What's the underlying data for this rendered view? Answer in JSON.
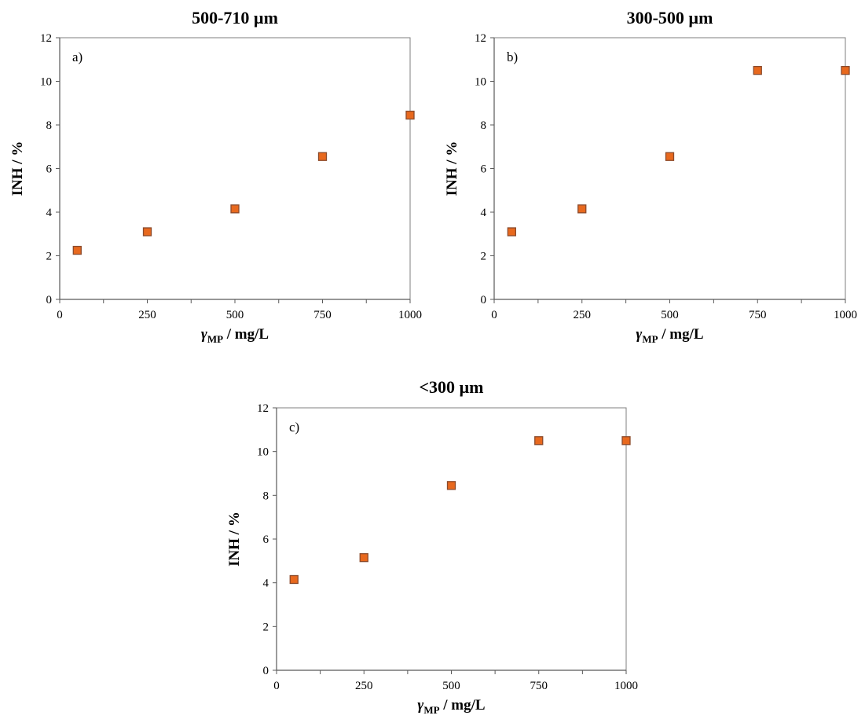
{
  "chart_data": [
    {
      "type": "scatter",
      "title": "500-710 µm",
      "panel_label": "a)",
      "xlabel_symbol": "γ",
      "xlabel_sub": "MP",
      "xlabel_unit": " / mg/L",
      "ylabel": "INH / %",
      "xlim": [
        0,
        1000
      ],
      "ylim": [
        0,
        12
      ],
      "x_major_ticks": [
        0,
        250,
        500,
        750,
        1000
      ],
      "x_tick_labels": [
        "0",
        "250",
        "500",
        "750",
        "1000"
      ],
      "y_major_ticks": [
        0,
        2,
        4,
        6,
        8,
        10,
        12
      ],
      "y_tick_labels": [
        "0",
        "2",
        "4",
        "6",
        "8",
        "10",
        "12"
      ],
      "grid": false,
      "marker": "square",
      "marker_fill": "#E8691E",
      "marker_edge": "#8B4A2B",
      "points": [
        {
          "x": 50,
          "y": 2.25
        },
        {
          "x": 250,
          "y": 3.1
        },
        {
          "x": 500,
          "y": 4.15
        },
        {
          "x": 750,
          "y": 6.55
        },
        {
          "x": 1000,
          "y": 8.45
        }
      ]
    },
    {
      "type": "scatter",
      "title": "300-500 µm",
      "panel_label": "b)",
      "xlabel_symbol": "γ",
      "xlabel_sub": "MP",
      "xlabel_unit": " / mg/L",
      "ylabel": "INH / %",
      "xlim": [
        0,
        1000
      ],
      "ylim": [
        0,
        12
      ],
      "x_major_ticks": [
        0,
        250,
        500,
        750,
        1000
      ],
      "x_tick_labels": [
        "0",
        "250",
        "500",
        "750",
        "1000"
      ],
      "y_major_ticks": [
        0,
        2,
        4,
        6,
        8,
        10,
        12
      ],
      "y_tick_labels": [
        "0",
        "2",
        "4",
        "6",
        "8",
        "10",
        "12"
      ],
      "grid": false,
      "marker": "square",
      "marker_fill": "#E8691E",
      "marker_edge": "#8B4A2B",
      "points": [
        {
          "x": 50,
          "y": 3.1
        },
        {
          "x": 250,
          "y": 4.15
        },
        {
          "x": 500,
          "y": 6.55
        },
        {
          "x": 750,
          "y": 10.5
        },
        {
          "x": 1000,
          "y": 10.5
        }
      ]
    },
    {
      "type": "scatter",
      "title": "<300 µm",
      "panel_label": "c)",
      "xlabel_symbol": "γ",
      "xlabel_sub": "MP",
      "xlabel_unit": " / mg/L",
      "ylabel": "INH / %",
      "xlim": [
        0,
        1000
      ],
      "ylim": [
        0,
        12
      ],
      "x_major_ticks": [
        0,
        250,
        500,
        750,
        1000
      ],
      "x_tick_labels": [
        "0",
        "250",
        "500",
        "750",
        "1000"
      ],
      "y_major_ticks": [
        0,
        2,
        4,
        6,
        8,
        10,
        12
      ],
      "y_tick_labels": [
        "0",
        "2",
        "4",
        "6",
        "8",
        "10",
        "12"
      ],
      "grid": false,
      "marker": "square",
      "marker_fill": "#E8691E",
      "marker_edge": "#8B4A2B",
      "points": [
        {
          "x": 50,
          "y": 4.15
        },
        {
          "x": 250,
          "y": 5.15
        },
        {
          "x": 500,
          "y": 8.45
        },
        {
          "x": 750,
          "y": 10.5
        },
        {
          "x": 1000,
          "y": 10.5
        }
      ]
    }
  ]
}
